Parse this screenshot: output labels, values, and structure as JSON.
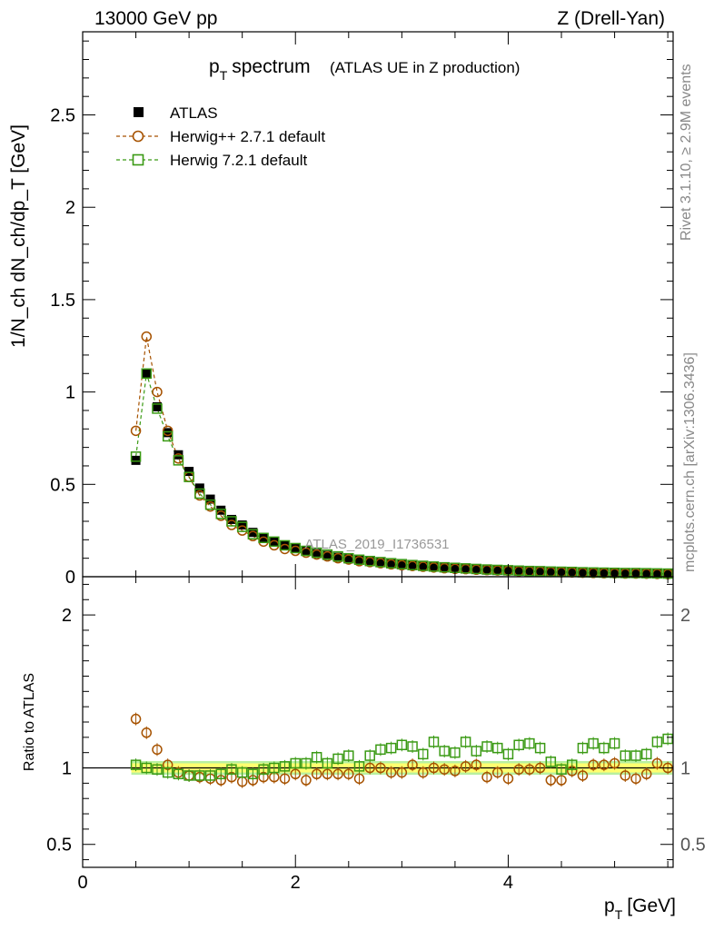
{
  "header": {
    "left": "13000 GeV pp",
    "right": "Z (Drell-Yan)"
  },
  "side_labels": {
    "rivet": "Rivet 3.1.10, ≥ 2.9M events",
    "mcplots": "mcplots.cern.ch [arXiv:1306.3436]"
  },
  "colors": {
    "atlas": "#000000",
    "herwigpp": "#a65200",
    "herwig7": "#3a9a14",
    "band_inner": "#ffff70",
    "band_outer": "#b8f0a0"
  },
  "chart_data": [
    {
      "type": "scatter",
      "title": "p_T spectrum",
      "title_main": "p",
      "title_sub": "T",
      "title_word": "spectrum",
      "subtitle": "(ATLAS UE in Z production)",
      "ylabel": "1/N_ch dN_ch/dp_T [GeV]",
      "xlabel": "",
      "xlim": [
        0,
        5.55
      ],
      "ylim": [
        0,
        2.95
      ],
      "xticks": [
        0,
        2,
        4
      ],
      "yticks": [
        0,
        0.5,
        1,
        1.5,
        2,
        2.5
      ],
      "ytick_labels": [
        "0",
        "0.5",
        "1",
        "1.5",
        "2",
        "2.5"
      ],
      "watermark": "ATLAS_2019_I1736531",
      "x": [
        0.5,
        0.6,
        0.7,
        0.8,
        0.9,
        1.0,
        1.1,
        1.2,
        1.3,
        1.4,
        1.5,
        1.6,
        1.7,
        1.8,
        1.9,
        2.0,
        2.1,
        2.2,
        2.3,
        2.4,
        2.5,
        2.6,
        2.7,
        2.8,
        2.9,
        3.0,
        3.1,
        3.2,
        3.3,
        3.4,
        3.5,
        3.6,
        3.7,
        3.8,
        3.9,
        4.0,
        4.1,
        4.2,
        4.3,
        4.4,
        4.5,
        4.6,
        4.7,
        4.8,
        4.9,
        5.0,
        5.1,
        5.2,
        5.3,
        5.4,
        5.5
      ],
      "series": [
        {
          "name": "ATLAS",
          "marker": "square-filled",
          "values": [
            0.63,
            1.1,
            0.92,
            0.78,
            0.66,
            0.57,
            0.48,
            0.42,
            0.36,
            0.31,
            0.28,
            0.24,
            0.21,
            0.19,
            0.17,
            0.155,
            0.14,
            0.125,
            0.115,
            0.105,
            0.097,
            0.089,
            0.082,
            0.076,
            0.07,
            0.065,
            0.06,
            0.056,
            0.052,
            0.048,
            0.045,
            0.042,
            0.04,
            0.037,
            0.035,
            0.033,
            0.031,
            0.029,
            0.028,
            0.026,
            0.025,
            0.024,
            0.022,
            0.021,
            0.02,
            0.019,
            0.018,
            0.018,
            0.017,
            0.016,
            0.015
          ]
        },
        {
          "name": "Herwig++ 2.7.1 default",
          "marker": "circle-open",
          "values": [
            0.79,
            1.3,
            1.0,
            0.79,
            0.64,
            0.54,
            0.44,
            0.38,
            0.33,
            0.28,
            0.25,
            0.22,
            0.19,
            0.17,
            0.15,
            0.14,
            0.13,
            0.12,
            0.11,
            0.1,
            0.093,
            0.084,
            0.079,
            0.073,
            0.067,
            0.062,
            0.058,
            0.054,
            0.05,
            0.046,
            0.043,
            0.041,
            0.038,
            0.036,
            0.034,
            0.032,
            0.03,
            0.028,
            0.027,
            0.025,
            0.024,
            0.023,
            0.021,
            0.02,
            0.019,
            0.018,
            0.017,
            0.017,
            0.016,
            0.015,
            0.014
          ]
        },
        {
          "name": "Herwig 7.2.1 default",
          "marker": "square-open",
          "values": [
            0.65,
            1.1,
            0.91,
            0.76,
            0.63,
            0.54,
            0.45,
            0.39,
            0.34,
            0.3,
            0.27,
            0.23,
            0.21,
            0.19,
            0.17,
            0.155,
            0.14,
            0.13,
            0.12,
            0.11,
            0.1,
            0.092,
            0.085,
            0.079,
            0.073,
            0.068,
            0.063,
            0.059,
            0.055,
            0.051,
            0.048,
            0.045,
            0.042,
            0.039,
            0.037,
            0.035,
            0.033,
            0.031,
            0.03,
            0.028,
            0.027,
            0.026,
            0.024,
            0.023,
            0.022,
            0.021,
            0.02,
            0.02,
            0.019,
            0.018,
            0.017
          ]
        }
      ]
    },
    {
      "type": "scatter",
      "title": "",
      "ylabel": "Ratio to ATLAS",
      "xlabel": "p_T [GeV]",
      "xlabel_main": "p",
      "xlabel_sub": "T",
      "xlabel_unit": "[GeV]",
      "xlim": [
        0,
        5.55
      ],
      "ylim": [
        0.35,
        2.25
      ],
      "xticks": [
        0,
        2,
        4
      ],
      "xtick_labels": [
        "0",
        "2",
        "4"
      ],
      "yticks": [
        0.5,
        1,
        2
      ],
      "ytick_labels": [
        "0.5",
        "1",
        "2"
      ],
      "reference": 1,
      "x": [
        0.5,
        0.6,
        0.7,
        0.8,
        0.9,
        1.0,
        1.1,
        1.2,
        1.3,
        1.4,
        1.5,
        1.6,
        1.7,
        1.8,
        1.9,
        2.0,
        2.1,
        2.2,
        2.3,
        2.4,
        2.5,
        2.6,
        2.7,
        2.8,
        2.9,
        3.0,
        3.1,
        3.2,
        3.3,
        3.4,
        3.5,
        3.6,
        3.7,
        3.8,
        3.9,
        4.0,
        4.1,
        4.2,
        4.3,
        4.4,
        4.5,
        4.6,
        4.7,
        4.8,
        4.9,
        5.0,
        5.1,
        5.2,
        5.3,
        5.4,
        5.5
      ],
      "band_inner": [
        0.97,
        1.03
      ],
      "band_outer": [
        0.955,
        1.045
      ],
      "series": [
        {
          "name": "Herwig++ 2.7.1 default",
          "marker": "circle-open",
          "values": [
            1.32,
            1.23,
            1.12,
            1.02,
            0.97,
            0.95,
            0.94,
            0.93,
            0.92,
            0.94,
            0.91,
            0.92,
            0.94,
            0.94,
            0.93,
            0.96,
            0.92,
            0.96,
            0.96,
            0.96,
            0.96,
            0.93,
            1.0,
            1.0,
            0.97,
            0.97,
            1.02,
            0.97,
            1.0,
            0.99,
            0.98,
            1.01,
            1.02,
            0.94,
            0.97,
            0.93,
            0.99,
            0.99,
            1.0,
            0.92,
            0.92,
            0.98,
            0.95,
            1.02,
            1.02,
            1.03,
            0.95,
            0.93,
            0.96,
            1.03,
            1.0
          ]
        },
        {
          "name": "Herwig 7.2.1 default",
          "marker": "square-open",
          "values": [
            1.02,
            1.0,
            0.99,
            0.97,
            0.96,
            0.95,
            0.95,
            0.95,
            0.96,
            0.99,
            0.97,
            0.96,
            0.99,
            1.0,
            1.01,
            1.03,
            1.03,
            1.07,
            1.03,
            1.06,
            1.08,
            1.01,
            1.08,
            1.12,
            1.13,
            1.15,
            1.14,
            1.09,
            1.17,
            1.11,
            1.1,
            1.17,
            1.11,
            1.14,
            1.13,
            1.09,
            1.15,
            1.16,
            1.13,
            1.04,
            0.99,
            1.02,
            1.13,
            1.16,
            1.13,
            1.16,
            1.08,
            1.08,
            1.09,
            1.17,
            1.19
          ]
        }
      ]
    }
  ]
}
